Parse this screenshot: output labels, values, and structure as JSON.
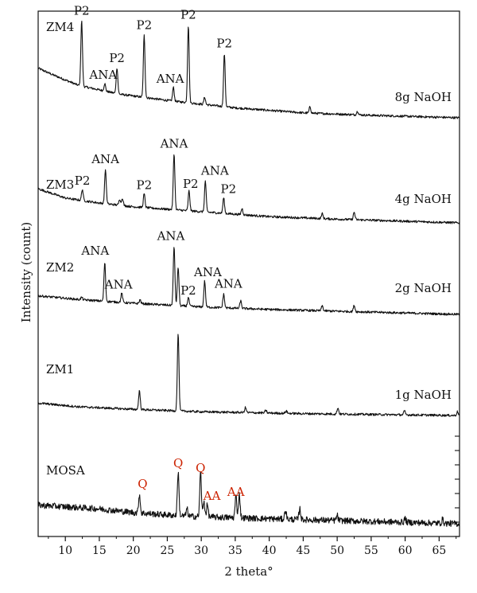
{
  "chart_data": {
    "type": "line",
    "xlabel": "2 theta°",
    "ylabel": "Intensity (count)",
    "xlim": [
      6,
      68
    ],
    "xticks": [
      10,
      15,
      20,
      25,
      30,
      35,
      40,
      45,
      50,
      55,
      60,
      65
    ],
    "grid": false,
    "colors": {
      "trace": "#111111",
      "mosa_label": "#cc2200",
      "zm_label": "#111111"
    },
    "series": [
      {
        "name": "ZM4",
        "condition": "8g NaOH",
        "background": [
          [
            6,
            0.8
          ],
          [
            8,
            0.7
          ],
          [
            12,
            0.52
          ],
          [
            18,
            0.38
          ],
          [
            25,
            0.28
          ],
          [
            35,
            0.16
          ],
          [
            45,
            0.08
          ],
          [
            55,
            0.04
          ],
          [
            68,
            0.0
          ]
        ],
        "peaks": [
          {
            "x": 12.4,
            "h": 1.05,
            "label": "P2"
          },
          {
            "x": 15.8,
            "h": 0.12,
            "label": "ANA"
          },
          {
            "x": 17.6,
            "h": 0.42,
            "label": "P2"
          },
          {
            "x": 21.6,
            "h": 1.0,
            "label": "P2"
          },
          {
            "x": 25.9,
            "h": 0.22,
            "label": "ANA"
          },
          {
            "x": 28.1,
            "h": 1.25,
            "label": "P2"
          },
          {
            "x": 30.5,
            "h": 0.12,
            "label": ""
          },
          {
            "x": 33.4,
            "h": 0.85,
            "label": "P2"
          },
          {
            "x": 46.0,
            "h": 0.1,
            "label": ""
          },
          {
            "x": 53.0,
            "h": 0.06,
            "label": ""
          }
        ]
      },
      {
        "name": "ZM3",
        "condition": "4g NaOH",
        "background": [
          [
            6,
            0.55
          ],
          [
            10,
            0.4
          ],
          [
            15,
            0.32
          ],
          [
            20,
            0.26
          ],
          [
            30,
            0.18
          ],
          [
            40,
            0.1
          ],
          [
            50,
            0.06
          ],
          [
            68,
            0.0
          ]
        ],
        "peaks": [
          {
            "x": 12.5,
            "h": 0.18,
            "label": "P2"
          },
          {
            "x": 15.9,
            "h": 0.55,
            "label": "ANA"
          },
          {
            "x": 18.0,
            "h": 0.1,
            "label": ""
          },
          {
            "x": 18.4,
            "h": 0.12,
            "label": ""
          },
          {
            "x": 21.6,
            "h": 0.22,
            "label": "P2"
          },
          {
            "x": 26.0,
            "h": 0.9,
            "label": "ANA"
          },
          {
            "x": 28.2,
            "h": 0.32,
            "label": "P2"
          },
          {
            "x": 30.6,
            "h": 0.5,
            "label": "ANA"
          },
          {
            "x": 33.3,
            "h": 0.25,
            "label": "P2"
          },
          {
            "x": 36.0,
            "h": 0.1,
            "label": ""
          },
          {
            "x": 47.8,
            "h": 0.08,
            "label": ""
          },
          {
            "x": 52.5,
            "h": 0.12,
            "label": ""
          }
        ]
      },
      {
        "name": "ZM2",
        "condition": "2g NaOH",
        "background": [
          [
            6,
            0.3
          ],
          [
            12,
            0.24
          ],
          [
            20,
            0.18
          ],
          [
            30,
            0.12
          ],
          [
            40,
            0.08
          ],
          [
            68,
            0.0
          ]
        ],
        "peaks": [
          {
            "x": 12.4,
            "h": 0.04,
            "label": ""
          },
          {
            "x": 15.8,
            "h": 0.62,
            "label": "ANA"
          },
          {
            "x": 18.3,
            "h": 0.15,
            "label": "ANA"
          },
          {
            "x": 21.0,
            "h": 0.06,
            "label": ""
          },
          {
            "x": 26.0,
            "h": 0.95,
            "label": "ANA"
          },
          {
            "x": 26.6,
            "h": 0.62,
            "label": ""
          },
          {
            "x": 28.1,
            "h": 0.14,
            "label": "P2"
          },
          {
            "x": 30.5,
            "h": 0.42,
            "label": "ANA"
          },
          {
            "x": 33.3,
            "h": 0.22,
            "label": "ANA"
          },
          {
            "x": 35.8,
            "h": 0.12,
            "label": ""
          },
          {
            "x": 47.8,
            "h": 0.08,
            "label": ""
          },
          {
            "x": 52.5,
            "h": 0.1,
            "label": ""
          }
        ]
      },
      {
        "name": "ZM1",
        "condition": "1g NaOH",
        "background": [
          [
            6,
            0.2
          ],
          [
            12,
            0.14
          ],
          [
            20,
            0.1
          ],
          [
            30,
            0.06
          ],
          [
            45,
            0.03
          ],
          [
            68,
            0.0
          ]
        ],
        "peaks": [
          {
            "x": 20.9,
            "h": 0.3,
            "label": ""
          },
          {
            "x": 26.6,
            "h": 1.25,
            "label": ""
          },
          {
            "x": 36.5,
            "h": 0.08,
            "label": ""
          },
          {
            "x": 39.5,
            "h": 0.04,
            "label": ""
          },
          {
            "x": 42.5,
            "h": 0.04,
            "label": ""
          },
          {
            "x": 50.1,
            "h": 0.1,
            "label": ""
          },
          {
            "x": 59.9,
            "h": 0.06,
            "label": ""
          },
          {
            "x": 67.7,
            "h": 0.06,
            "label": ""
          }
        ]
      },
      {
        "name": "MOSA",
        "condition": "",
        "background": [
          [
            6,
            0.3
          ],
          [
            15,
            0.24
          ],
          [
            20,
            0.18
          ],
          [
            28,
            0.12
          ],
          [
            40,
            0.08
          ],
          [
            68,
            0.0
          ]
        ],
        "peaks": [
          {
            "x": 20.9,
            "h": 0.3,
            "label": "Q"
          },
          {
            "x": 26.6,
            "h": 0.7,
            "label": "Q"
          },
          {
            "x": 27.9,
            "h": 0.12,
            "label": ""
          },
          {
            "x": 29.9,
            "h": 0.72,
            "label": "Q"
          },
          {
            "x": 30.4,
            "h": 0.25,
            "label": "AA"
          },
          {
            "x": 30.9,
            "h": 0.2,
            "label": ""
          },
          {
            "x": 35.1,
            "h": 0.35,
            "label": "AA"
          },
          {
            "x": 35.6,
            "h": 0.38,
            "label": ""
          },
          {
            "x": 42.4,
            "h": 0.15,
            "label": ""
          },
          {
            "x": 44.5,
            "h": 0.18,
            "label": ""
          },
          {
            "x": 50.0,
            "h": 0.08,
            "label": ""
          },
          {
            "x": 60.0,
            "h": 0.06,
            "label": ""
          },
          {
            "x": 65.5,
            "h": 0.06,
            "label": ""
          }
        ]
      }
    ]
  }
}
